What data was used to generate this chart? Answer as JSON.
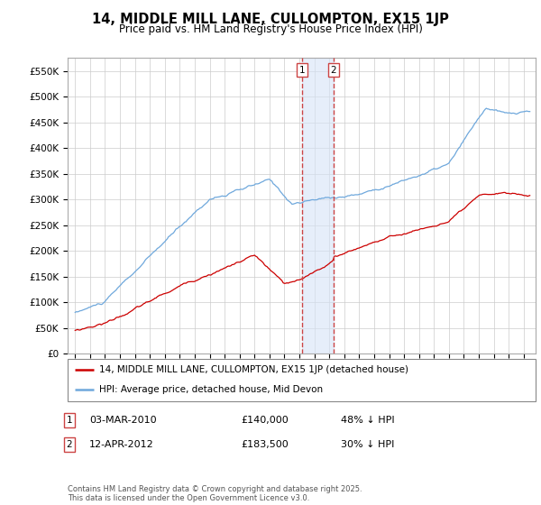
{
  "title": "14, MIDDLE MILL LANE, CULLOMPTON, EX15 1JP",
  "subtitle": "Price paid vs. HM Land Registry's House Price Index (HPI)",
  "legend_line1": "14, MIDDLE MILL LANE, CULLOMPTON, EX15 1JP (detached house)",
  "legend_line2": "HPI: Average price, detached house, Mid Devon",
  "footnote": "Contains HM Land Registry data © Crown copyright and database right 2025.\nThis data is licensed under the Open Government Licence v3.0.",
  "table": [
    {
      "num": "1",
      "date": "03-MAR-2010",
      "price": "£140,000",
      "hpi": "48% ↓ HPI"
    },
    {
      "num": "2",
      "date": "12-APR-2012",
      "price": "£183,500",
      "hpi": "30% ↓ HPI"
    }
  ],
  "sale1_year": 2010.17,
  "sale1_price": 140000,
  "sale2_year": 2012.28,
  "sale2_price": 183500,
  "hpi_color": "#6fa8dc",
  "price_color": "#cc0000",
  "vline_color": "#cc4444",
  "shade_color": "#d6e4f7",
  "ylim": [
    0,
    575000
  ],
  "yticks": [
    0,
    50000,
    100000,
    150000,
    200000,
    250000,
    300000,
    350000,
    400000,
    450000,
    500000,
    550000
  ],
  "ylabel_fmt": [
    "£0",
    "£50K",
    "£100K",
    "£150K",
    "£200K",
    "£250K",
    "£300K",
    "£350K",
    "£400K",
    "£450K",
    "£500K",
    "£550K"
  ],
  "xmin": 1994.5,
  "xmax": 2025.8
}
